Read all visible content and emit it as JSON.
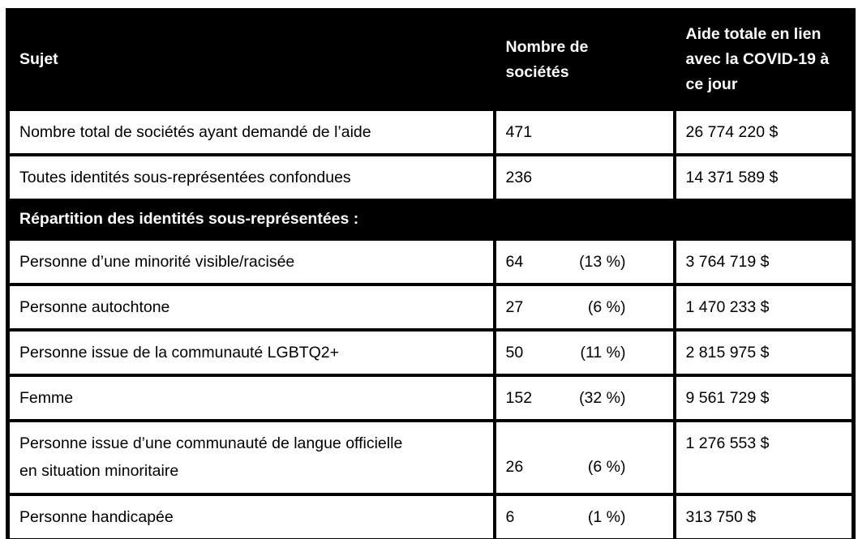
{
  "colors": {
    "header_bg": "#000000",
    "header_text": "#ffffff",
    "body_text": "#000000",
    "border": "#000000",
    "row_bg": "#ffffff"
  },
  "table": {
    "columns": [
      {
        "label": "Sujet"
      },
      {
        "label": "Nombre de sociétés"
      },
      {
        "label": "Aide totale en lien avec la COVID-19 à ce jour"
      }
    ],
    "section_label": "Répartition des identités sous-représentées :",
    "rows": [
      {
        "sujet": "Nombre total de sociétés ayant demandé de l’aide",
        "count": "471",
        "percent": "",
        "amount": "26 774 220 $"
      },
      {
        "sujet": "Toutes identités sous-représentées confondues",
        "count": "236",
        "percent": "",
        "amount": "14 371 589 $"
      },
      {
        "sujet": "Personne d’une minorité visible/racisée",
        "count": "64",
        "percent": "(13 %)",
        "amount": "3 764 719 $"
      },
      {
        "sujet": "Personne autochtone",
        "count": "27",
        "percent": "(6 %)",
        "amount": "1 470 233 $"
      },
      {
        "sujet": "Personne issue de la communauté LGBTQ2+",
        "count": "50",
        "percent": "(11 %)",
        "amount": "2 815 975 $"
      },
      {
        "sujet": "Femme",
        "count": "152",
        "percent": "(32 %)",
        "amount": "9 561 729 $"
      },
      {
        "sujet": "Personne issue d’une communauté de langue officielle en situation minoritaire",
        "count": "26",
        "percent": "(6 %)",
        "amount": "1 276 553 $"
      },
      {
        "sujet": "Personne handicapée",
        "count": "6",
        "percent": "(1 %)",
        "amount": "313 750 $"
      }
    ]
  }
}
